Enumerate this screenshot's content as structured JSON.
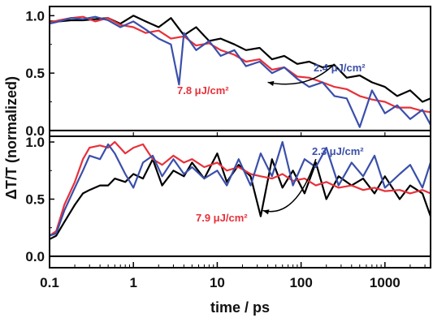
{
  "chart_data": {
    "type": "line",
    "xlabel": "time / ps",
    "ylabel": "ΔT/T (normalized)",
    "x_scale": "log",
    "xlim": [
      0.1,
      3500
    ],
    "x_ticks": [
      0.1,
      1,
      10,
      100,
      1000
    ],
    "x_tick_labels": [
      "0.1",
      "1",
      "10",
      "100",
      "1000"
    ],
    "colors": {
      "black": "#000000",
      "red": "#e8303a",
      "blue": "#3a4faa"
    },
    "panels": [
      {
        "ylim": [
          -0.05,
          1.08
        ],
        "y_ticks": [
          0.0,
          0.5,
          1.0
        ],
        "y_tick_labels": [
          "0.0",
          "0.5",
          "1.0"
        ],
        "zero_line": true,
        "annotations": [
          {
            "text": "2.4 μJ/cm²",
            "color": "#3a4faa"
          },
          {
            "text": "7.8 μJ/cm²",
            "color": "#e8303a"
          }
        ],
        "arrow": {
          "from": [
            250,
            0.58
          ],
          "to": [
            40,
            0.42
          ]
        },
        "series": [
          {
            "color": "black",
            "x": [
              0.1,
              0.13,
              0.18,
              0.25,
              0.35,
              0.5,
              0.7,
              1,
              1.4,
              2,
              2.8,
              4,
              5.6,
              8,
              11,
              16,
              22,
              32,
              45,
              63,
              90,
              125,
              180,
              250,
              350,
              500,
              700,
              1000,
              1400,
              2000,
              2800,
              3500
            ],
            "values": [
              0.95,
              0.95,
              0.96,
              0.96,
              0.97,
              0.98,
              0.93,
              1.0,
              0.95,
              0.9,
              0.98,
              0.83,
              0.9,
              0.78,
              0.8,
              0.75,
              0.7,
              0.72,
              0.62,
              0.65,
              0.58,
              0.6,
              0.55,
              0.57,
              0.46,
              0.48,
              0.42,
              0.38,
              0.3,
              0.35,
              0.25,
              0.28
            ]
          },
          {
            "color": "red",
            "x": [
              0.1,
              0.13,
              0.18,
              0.25,
              0.35,
              0.5,
              0.7,
              1,
              1.4,
              2,
              2.8,
              4,
              5.6,
              8,
              11,
              16,
              22,
              32,
              45,
              63,
              90,
              125,
              180,
              250,
              350,
              500,
              700,
              1000,
              1400,
              2000,
              2800,
              3500
            ],
            "values": [
              0.94,
              0.96,
              0.98,
              0.99,
              0.95,
              0.98,
              0.92,
              0.9,
              0.85,
              0.87,
              0.8,
              0.82,
              0.74,
              0.76,
              0.7,
              0.66,
              0.6,
              0.62,
              0.53,
              0.55,
              0.47,
              0.46,
              0.42,
              0.38,
              0.36,
              0.3,
              0.27,
              0.25,
              0.2,
              0.2,
              0.17,
              0.16
            ]
          },
          {
            "color": "blue",
            "x": [
              0.1,
              0.13,
              0.18,
              0.25,
              0.35,
              0.5,
              0.7,
              1,
              1.4,
              2,
              2.8,
              3.5,
              4,
              5.6,
              8,
              11,
              16,
              22,
              32,
              45,
              63,
              90,
              125,
              180,
              250,
              350,
              500,
              700,
              1000,
              1400,
              2000,
              2800,
              3500
            ],
            "values": [
              0.93,
              0.95,
              0.98,
              0.97,
              0.99,
              0.96,
              0.9,
              0.95,
              0.88,
              0.8,
              0.75,
              0.4,
              0.85,
              0.7,
              0.78,
              0.65,
              0.7,
              0.56,
              0.6,
              0.5,
              0.55,
              0.45,
              0.38,
              0.42,
              0.3,
              0.28,
              0.03,
              0.35,
              0.15,
              0.22,
              0.1,
              0.18,
              0.05
            ]
          }
        ]
      },
      {
        "ylim": [
          -0.1,
          1.05
        ],
        "y_ticks": [
          0.0,
          0.5,
          1.0
        ],
        "y_tick_labels": [
          "0.0",
          "0.5",
          "1.0"
        ],
        "zero_line": true,
        "annotations": [
          {
            "text": "2.3 μJ/cm²",
            "color": "#3a4faa"
          },
          {
            "text": "7.9 μJ/cm²",
            "color": "#e8303a"
          }
        ],
        "arrow": {
          "from": [
            150,
            0.85
          ],
          "to": [
            35,
            0.4
          ]
        },
        "series": [
          {
            "color": "black",
            "x": [
              0.1,
              0.12,
              0.15,
              0.2,
              0.25,
              0.3,
              0.4,
              0.5,
              0.6,
              0.8,
              1,
              1.3,
              1.7,
              2.2,
              3,
              4,
              5,
              7,
              10,
              13,
              18,
              25,
              33,
              45,
              60,
              80,
              110,
              150,
              200,
              280,
              400,
              550,
              750,
              1000,
              1500,
              2000,
              2800,
              3500
            ],
            "values": [
              0.15,
              0.18,
              0.3,
              0.45,
              0.55,
              0.58,
              0.62,
              0.62,
              0.68,
              0.65,
              0.72,
              0.68,
              0.85,
              0.62,
              0.75,
              0.7,
              0.82,
              0.68,
              0.9,
              0.65,
              0.8,
              0.7,
              0.35,
              0.85,
              0.6,
              0.75,
              0.55,
              0.82,
              0.5,
              0.7,
              0.62,
              0.68,
              0.55,
              0.7,
              0.5,
              0.62,
              0.55,
              0.35
            ]
          },
          {
            "color": "red",
            "x": [
              0.1,
              0.12,
              0.15,
              0.2,
              0.25,
              0.3,
              0.4,
              0.5,
              0.6,
              0.8,
              1,
              1.3,
              1.7,
              2.2,
              3,
              4,
              5,
              7,
              10,
              13,
              18,
              25,
              33,
              45,
              60,
              80,
              110,
              150,
              200,
              280,
              400,
              550,
              750,
              1000,
              1500,
              2000,
              2800,
              3500
            ],
            "values": [
              0.18,
              0.22,
              0.45,
              0.65,
              0.85,
              0.95,
              0.97,
              0.95,
              1.0,
              0.9,
              0.95,
              0.98,
              0.85,
              0.8,
              0.88,
              0.82,
              0.85,
              0.78,
              0.82,
              0.75,
              0.78,
              0.72,
              0.7,
              0.68,
              0.72,
              0.66,
              0.68,
              0.62,
              0.65,
              0.6,
              0.62,
              0.58,
              0.6,
              0.57,
              0.58,
              0.55,
              0.58,
              0.55
            ]
          },
          {
            "color": "blue",
            "x": [
              0.1,
              0.12,
              0.15,
              0.2,
              0.25,
              0.3,
              0.4,
              0.5,
              0.6,
              0.8,
              1,
              1.3,
              1.7,
              2.2,
              3,
              4,
              5,
              7,
              10,
              13,
              18,
              25,
              33,
              45,
              60,
              80,
              110,
              150,
              200,
              280,
              400,
              550,
              750,
              1000,
              1500,
              2000,
              2800,
              3500
            ],
            "values": [
              0.18,
              0.2,
              0.4,
              0.6,
              0.75,
              0.88,
              0.85,
              0.98,
              0.9,
              0.72,
              0.6,
              0.82,
              0.88,
              0.7,
              0.85,
              0.72,
              0.78,
              0.68,
              0.75,
              0.62,
              0.85,
              0.62,
              0.9,
              0.7,
              1.0,
              0.62,
              0.85,
              0.78,
              0.95,
              0.62,
              0.82,
              0.7,
              0.88,
              0.6,
              0.72,
              0.8,
              0.6,
              0.82
            ]
          }
        ]
      }
    ]
  }
}
